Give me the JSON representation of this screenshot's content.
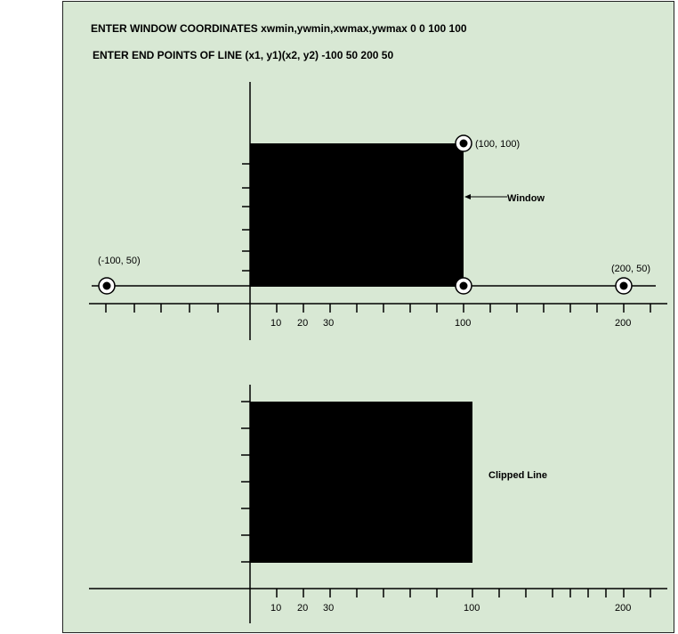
{
  "prompt": {
    "window_coords": "ENTER WINDOW COORDINATES xwmin,ywmin,xwmax,ywmax  0   0 100  100",
    "line_points": "ENTER END POINTS OF LINE (x1, y1)(x2, y2) -100 50 200 50"
  },
  "top_plot": {
    "x_ticks": [
      "10",
      "20",
      "30",
      "100",
      "200"
    ],
    "point_labels": [
      "(-100, 50)",
      "(100, 100)",
      "(200, 50)"
    ],
    "window_label": "Window"
  },
  "bottom_plot": {
    "x_ticks": [
      "10",
      "20",
      "30",
      "100",
      "200"
    ],
    "clipped_label": "Clipped Line"
  },
  "colors": {
    "background": "#d8e8d4",
    "ink": "#000000"
  }
}
